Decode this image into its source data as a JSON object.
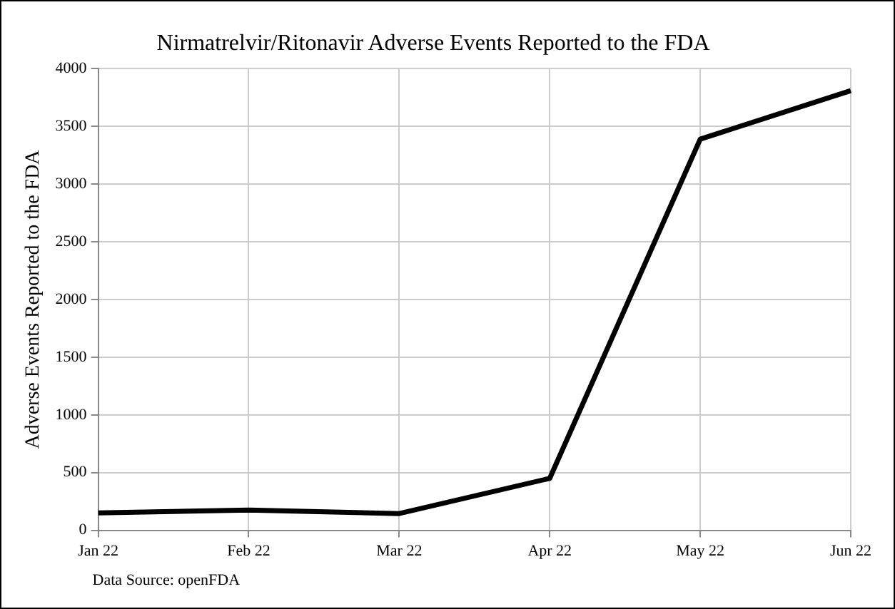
{
  "chart_data": {
    "type": "line",
    "title": "Nirmatrelvir/Ritonavir Adverse Events Reported to the FDA",
    "ylabel": "Adverse Events Reported to the FDA",
    "categories": [
      "Jan 22",
      "Feb 22",
      "Mar 22",
      "Apr 22",
      "May 22",
      "Jun 22"
    ],
    "series": [
      {
        "color": "#000000",
        "values": [
          150,
          175,
          145,
          450,
          3390,
          3810
        ]
      }
    ],
    "ylim": [
      0,
      4000
    ],
    "yticks": [
      0,
      500,
      1000,
      1500,
      2000,
      2500,
      3000,
      3500,
      4000
    ],
    "grid": true,
    "legend": false,
    "marker": "none",
    "line_style": "solid",
    "annotations": [
      "Data Source: openFDA"
    ]
  }
}
